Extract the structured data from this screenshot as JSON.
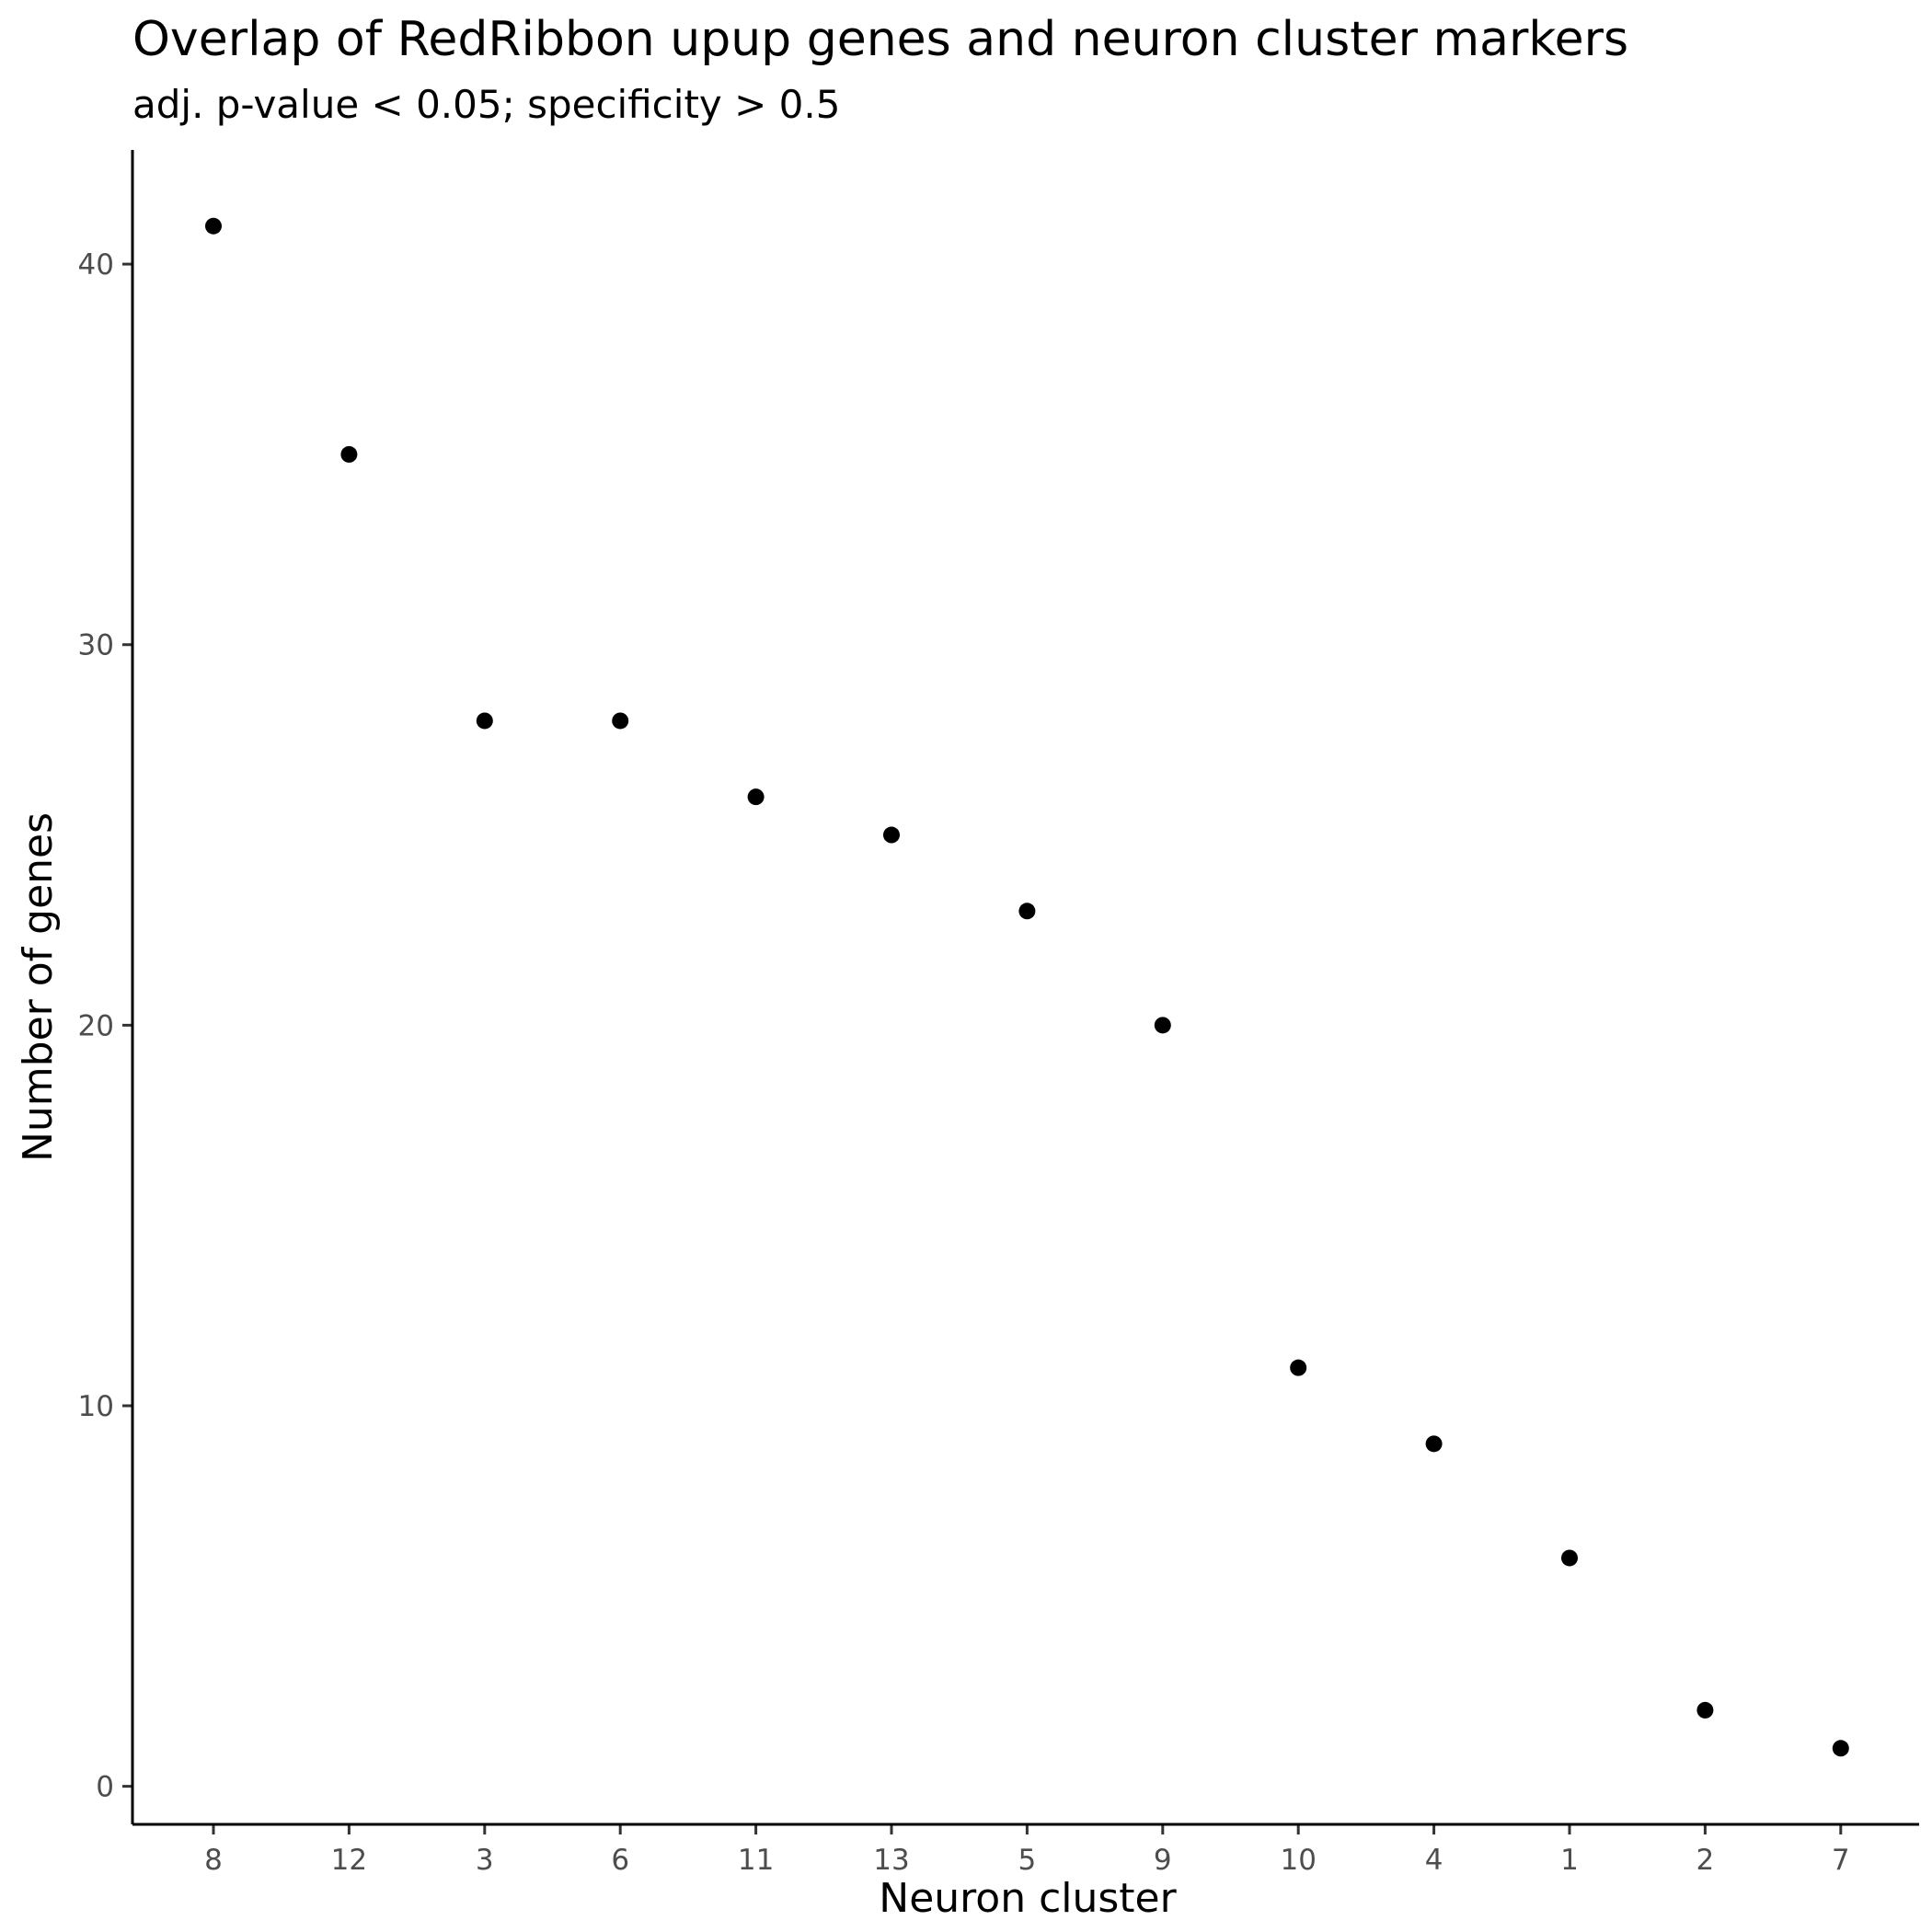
{
  "chart_data": {
    "type": "scatter",
    "title": "Overlap of RedRibbon upup genes and neuron cluster markers",
    "subtitle": "adj. p-value < 0.05; specificity > 0.5",
    "xlabel": "Neuron cluster",
    "ylabel": "Number of genes",
    "categories": [
      "8",
      "12",
      "3",
      "6",
      "11",
      "13",
      "5",
      "9",
      "10",
      "4",
      "1",
      "2",
      "7"
    ],
    "values": [
      41,
      35,
      28,
      28,
      26,
      25,
      23,
      20,
      11,
      9,
      6,
      2,
      1
    ],
    "yticks": [
      0,
      10,
      20,
      30,
      40
    ],
    "ylim": [
      -1,
      43
    ],
    "grid": false,
    "legend": "none",
    "point_color": "#000000"
  }
}
